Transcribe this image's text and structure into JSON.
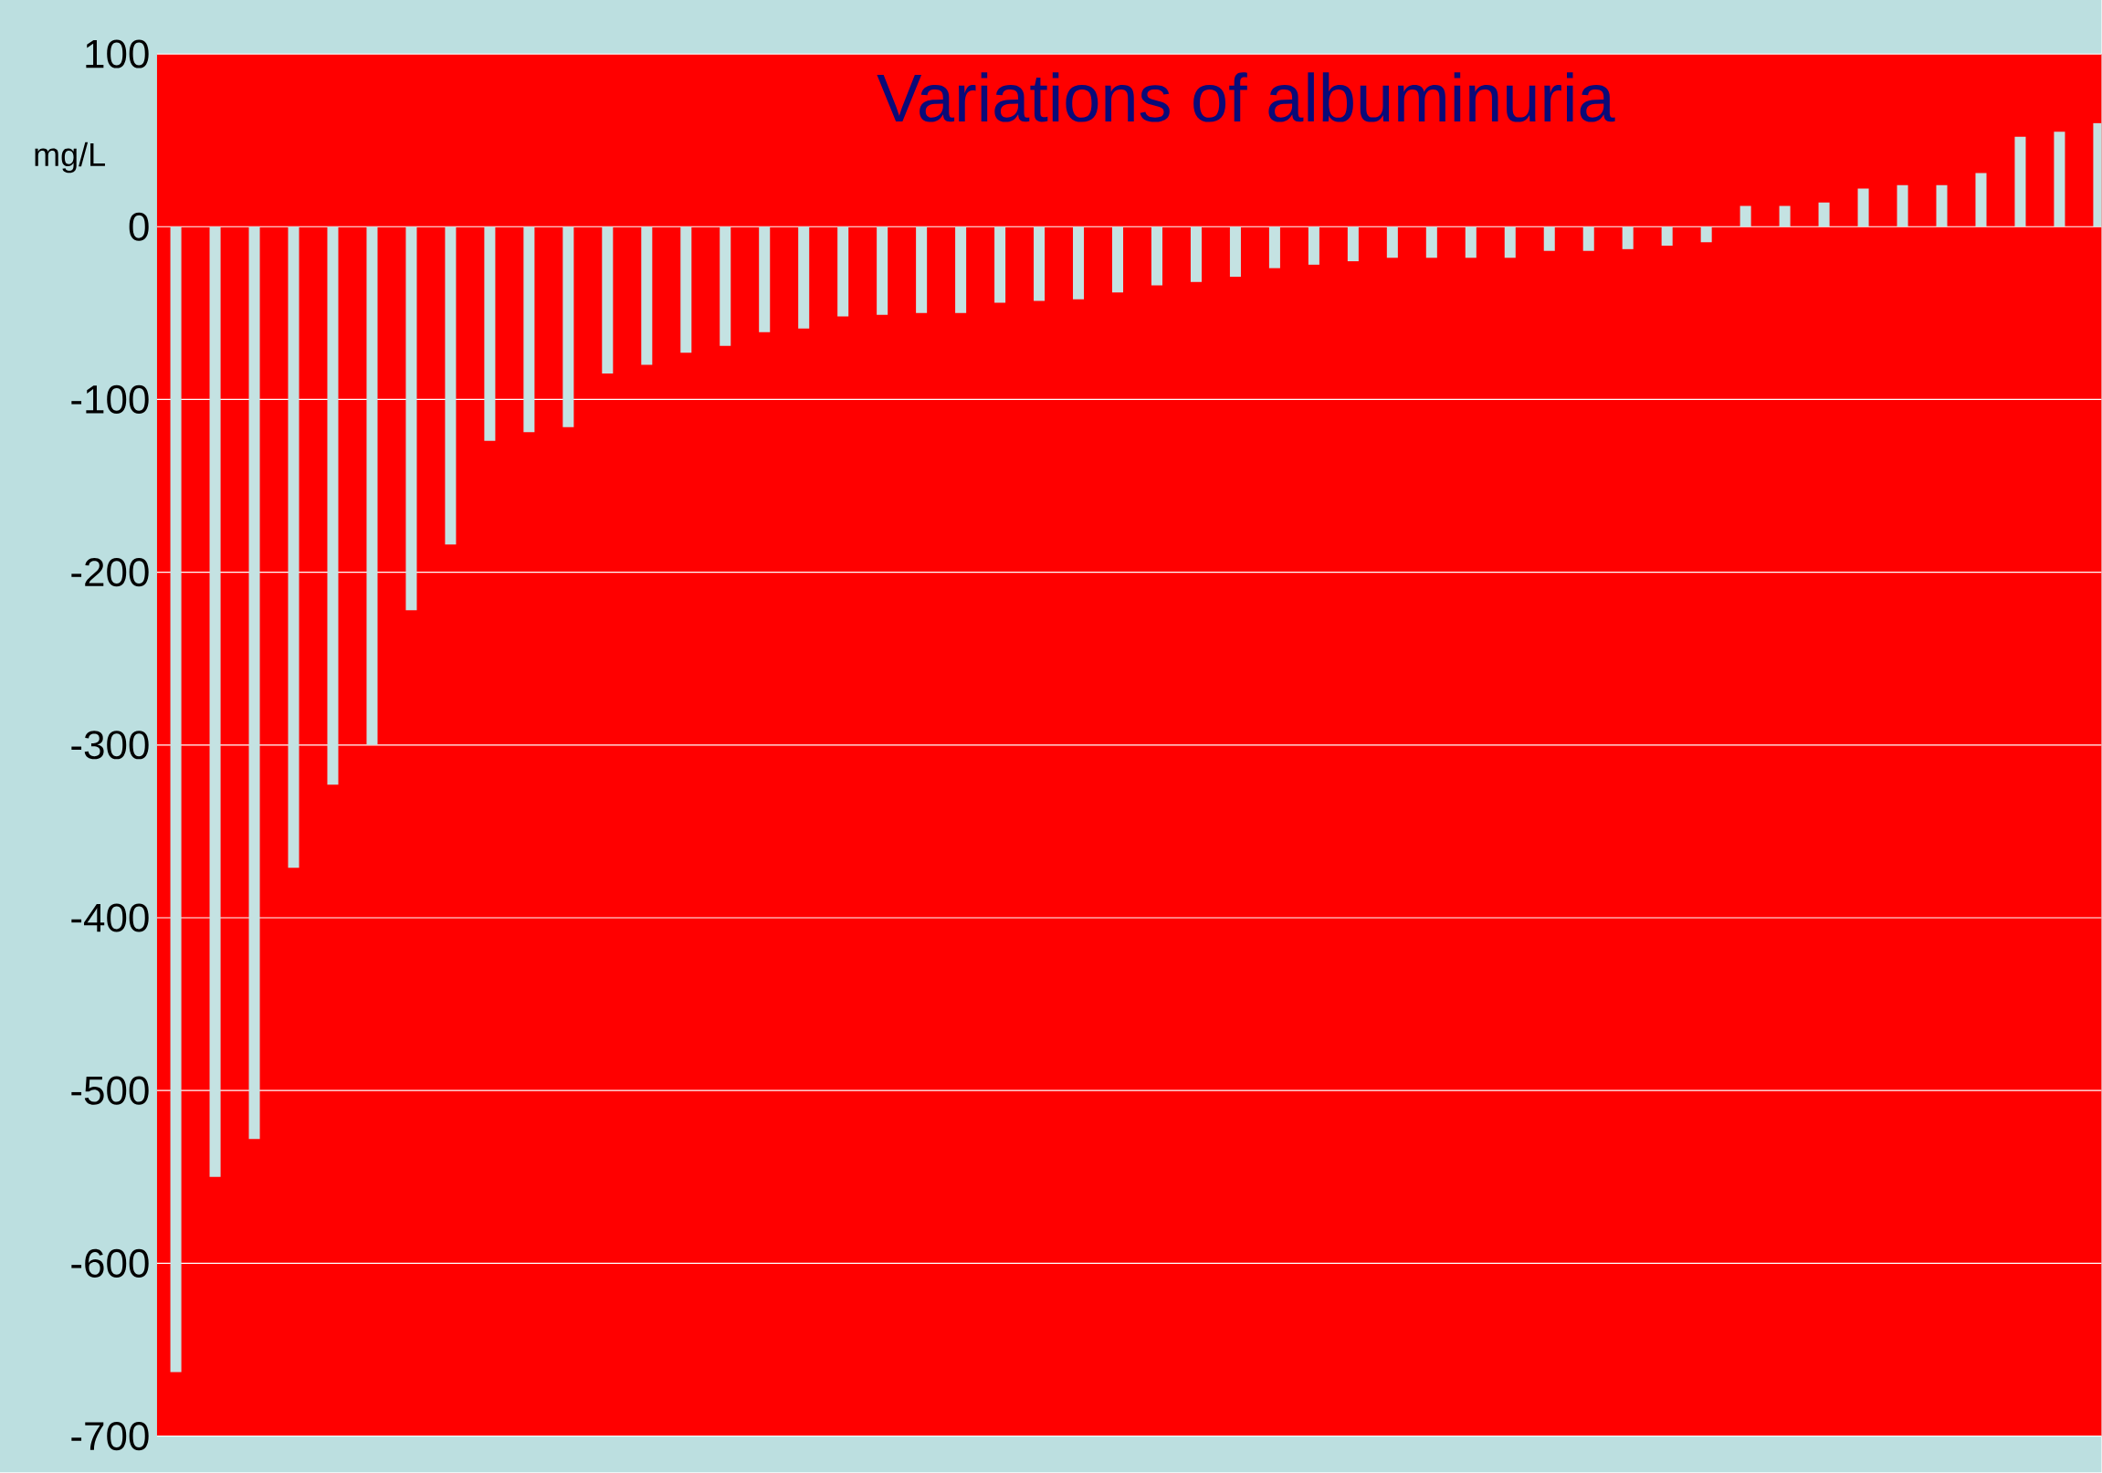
{
  "chart_data": {
    "type": "bar",
    "title": "Variations of albuminuria",
    "ylabel": "mg/L",
    "categories": [
      null,
      null,
      null,
      null,
      null,
      null,
      null,
      null,
      null,
      null,
      null,
      null,
      null,
      null,
      null,
      null,
      null,
      null,
      null,
      null,
      null,
      null,
      null,
      null,
      null,
      null,
      null,
      null,
      null,
      null,
      null,
      null,
      null,
      null,
      null,
      null,
      null,
      null,
      null,
      null,
      null,
      null,
      null,
      null,
      null,
      null,
      null,
      null,
      null,
      null
    ],
    "values": [
      -663,
      -550,
      -528,
      -371,
      -323,
      -300,
      -222,
      -184,
      -124,
      -119,
      -116,
      -85,
      -80,
      -73,
      -69,
      -61,
      -59,
      -52,
      -51,
      -50,
      -50,
      -44,
      -43,
      -42,
      -38,
      -34,
      -32,
      -29,
      -24,
      -22,
      -20,
      -18,
      -18,
      -18,
      -18,
      -14,
      -14,
      -13,
      -11,
      -9,
      12,
      12,
      14,
      22,
      24,
      24,
      31,
      52,
      55,
      60
    ],
    "color": "#c4e2e2",
    "ylim": [
      -700,
      100
    ],
    "yticks": [
      -700,
      -600,
      -500,
      -400,
      -300,
      -200,
      -100,
      0,
      100
    ],
    "grid": "y"
  }
}
